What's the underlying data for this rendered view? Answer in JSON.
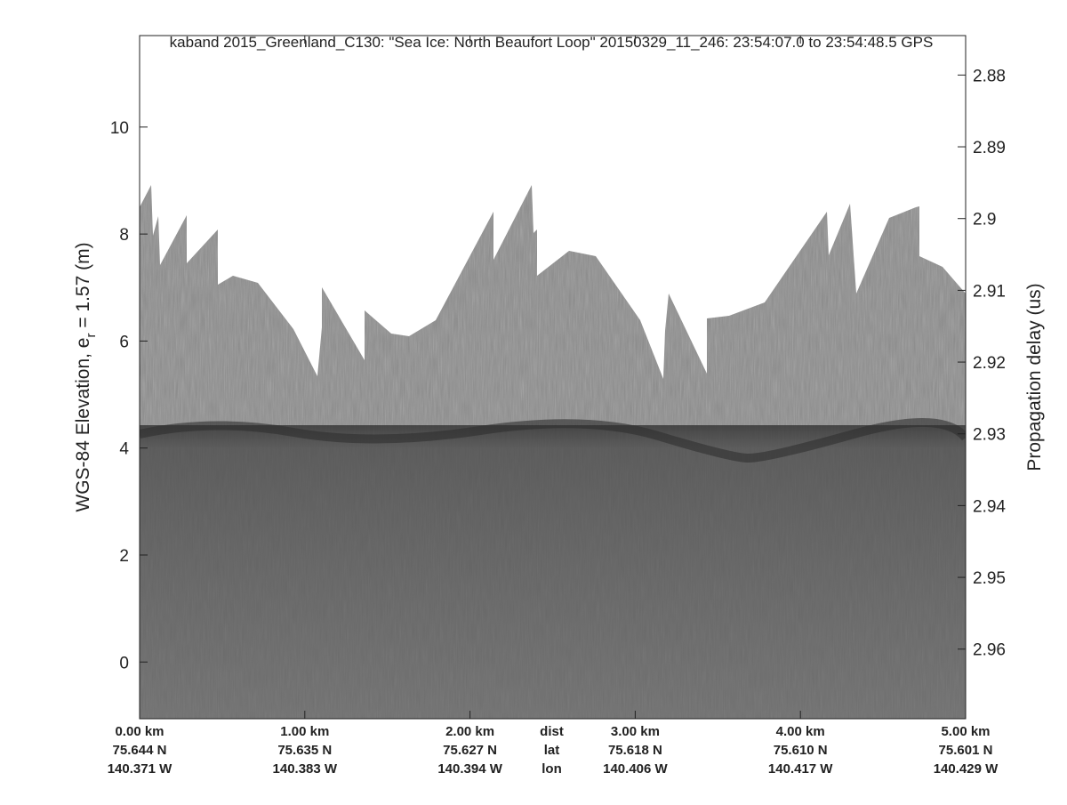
{
  "chart_data": {
    "type": "echogram",
    "title": "kaband 2015_Greenland_C130: \"Sea Ice: North Beaufort Loop\"  20150329_11_246: 23:54:07.0 to 23:54:48.5 GPS",
    "ylabel": {
      "text": "WGS-84 Elevation, e",
      "subscript": "r",
      "suffix": " = 1.57 (m)"
    },
    "y2label": "Propagation delay (us)",
    "ylim": [
      -1.06,
      11.71
    ],
    "yticks": [
      0,
      2,
      4,
      6,
      8,
      10
    ],
    "y2lim": [
      2.9697,
      2.8745
    ],
    "y2ticks": [
      2.88,
      2.89,
      2.9,
      2.91,
      2.92,
      2.93,
      2.94,
      2.95,
      2.96
    ],
    "xlim": [
      0,
      5
    ],
    "xticks": [
      {
        "value": 0,
        "label": "0.00 km"
      },
      {
        "value": 1,
        "label": "1.00 km"
      },
      {
        "value": 2,
        "label": "2.00 km"
      },
      {
        "value": 3,
        "label": "3.00 km"
      },
      {
        "value": 4,
        "label": "4.00 km"
      },
      {
        "value": 5,
        "label": "5.00 km"
      }
    ],
    "lat_labels": [
      "75.644 N",
      "75.635 N",
      "75.627 N",
      "75.618 N",
      "75.610 N",
      "75.601 N"
    ],
    "lon_labels": [
      "140.371 W",
      "140.383 W",
      "140.394 W",
      "140.406 W",
      "140.417 W",
      "140.429 W"
    ],
    "row_labels": [
      "dist",
      "lat",
      "lon"
    ]
  }
}
